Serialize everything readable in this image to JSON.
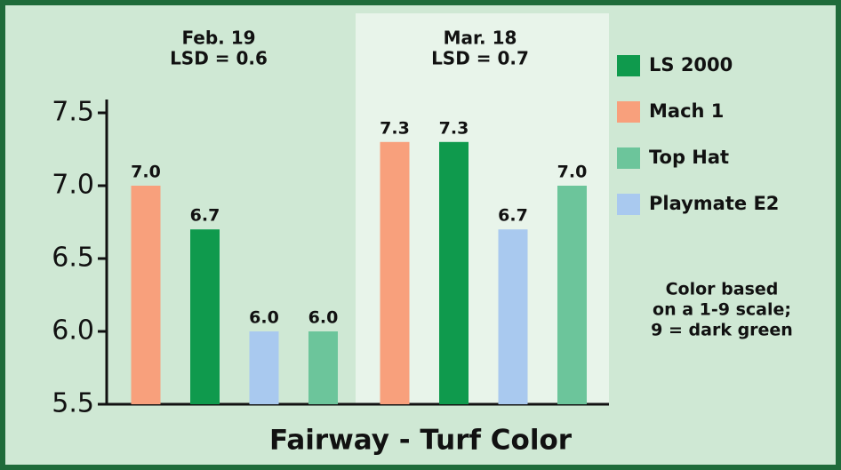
{
  "chart_data": {
    "type": "bar",
    "title": "Fairway - Turf Color",
    "categories": [
      "Feb. 19",
      "Mar. 18"
    ],
    "category_notes": [
      "LSD = 0.6",
      "LSD = 0.7"
    ],
    "series": [
      {
        "name": "LS 2000",
        "color": "#0f9a4d",
        "values": [
          6.7,
          7.3
        ],
        "value_labels": [
          "6.7",
          "7.3"
        ]
      },
      {
        "name": "Mach 1",
        "color": "#f8a07c",
        "values": [
          7.0,
          7.3
        ],
        "value_labels": [
          "7.0",
          "7.3"
        ]
      },
      {
        "name": "Top Hat",
        "color": "#6cc59b",
        "values": [
          6.0,
          7.0
        ],
        "value_labels": [
          "6.0",
          "7.0"
        ]
      },
      {
        "name": "Playmate E2",
        "color": "#a9c9ef",
        "values": [
          6.0,
          6.7
        ],
        "value_labels": [
          "6.0",
          "6.7"
        ]
      }
    ],
    "ylim": [
      5.5,
      7.5
    ],
    "yticks": [
      5.5,
      {
        "value": 6,
        "label": "6.0"
      },
      6.5,
      {
        "value": 7,
        "label": "7.0"
      },
      7.5
    ],
    "annotation": [
      "Color based",
      "on a 1-9 scale;",
      "9 = dark green"
    ]
  }
}
